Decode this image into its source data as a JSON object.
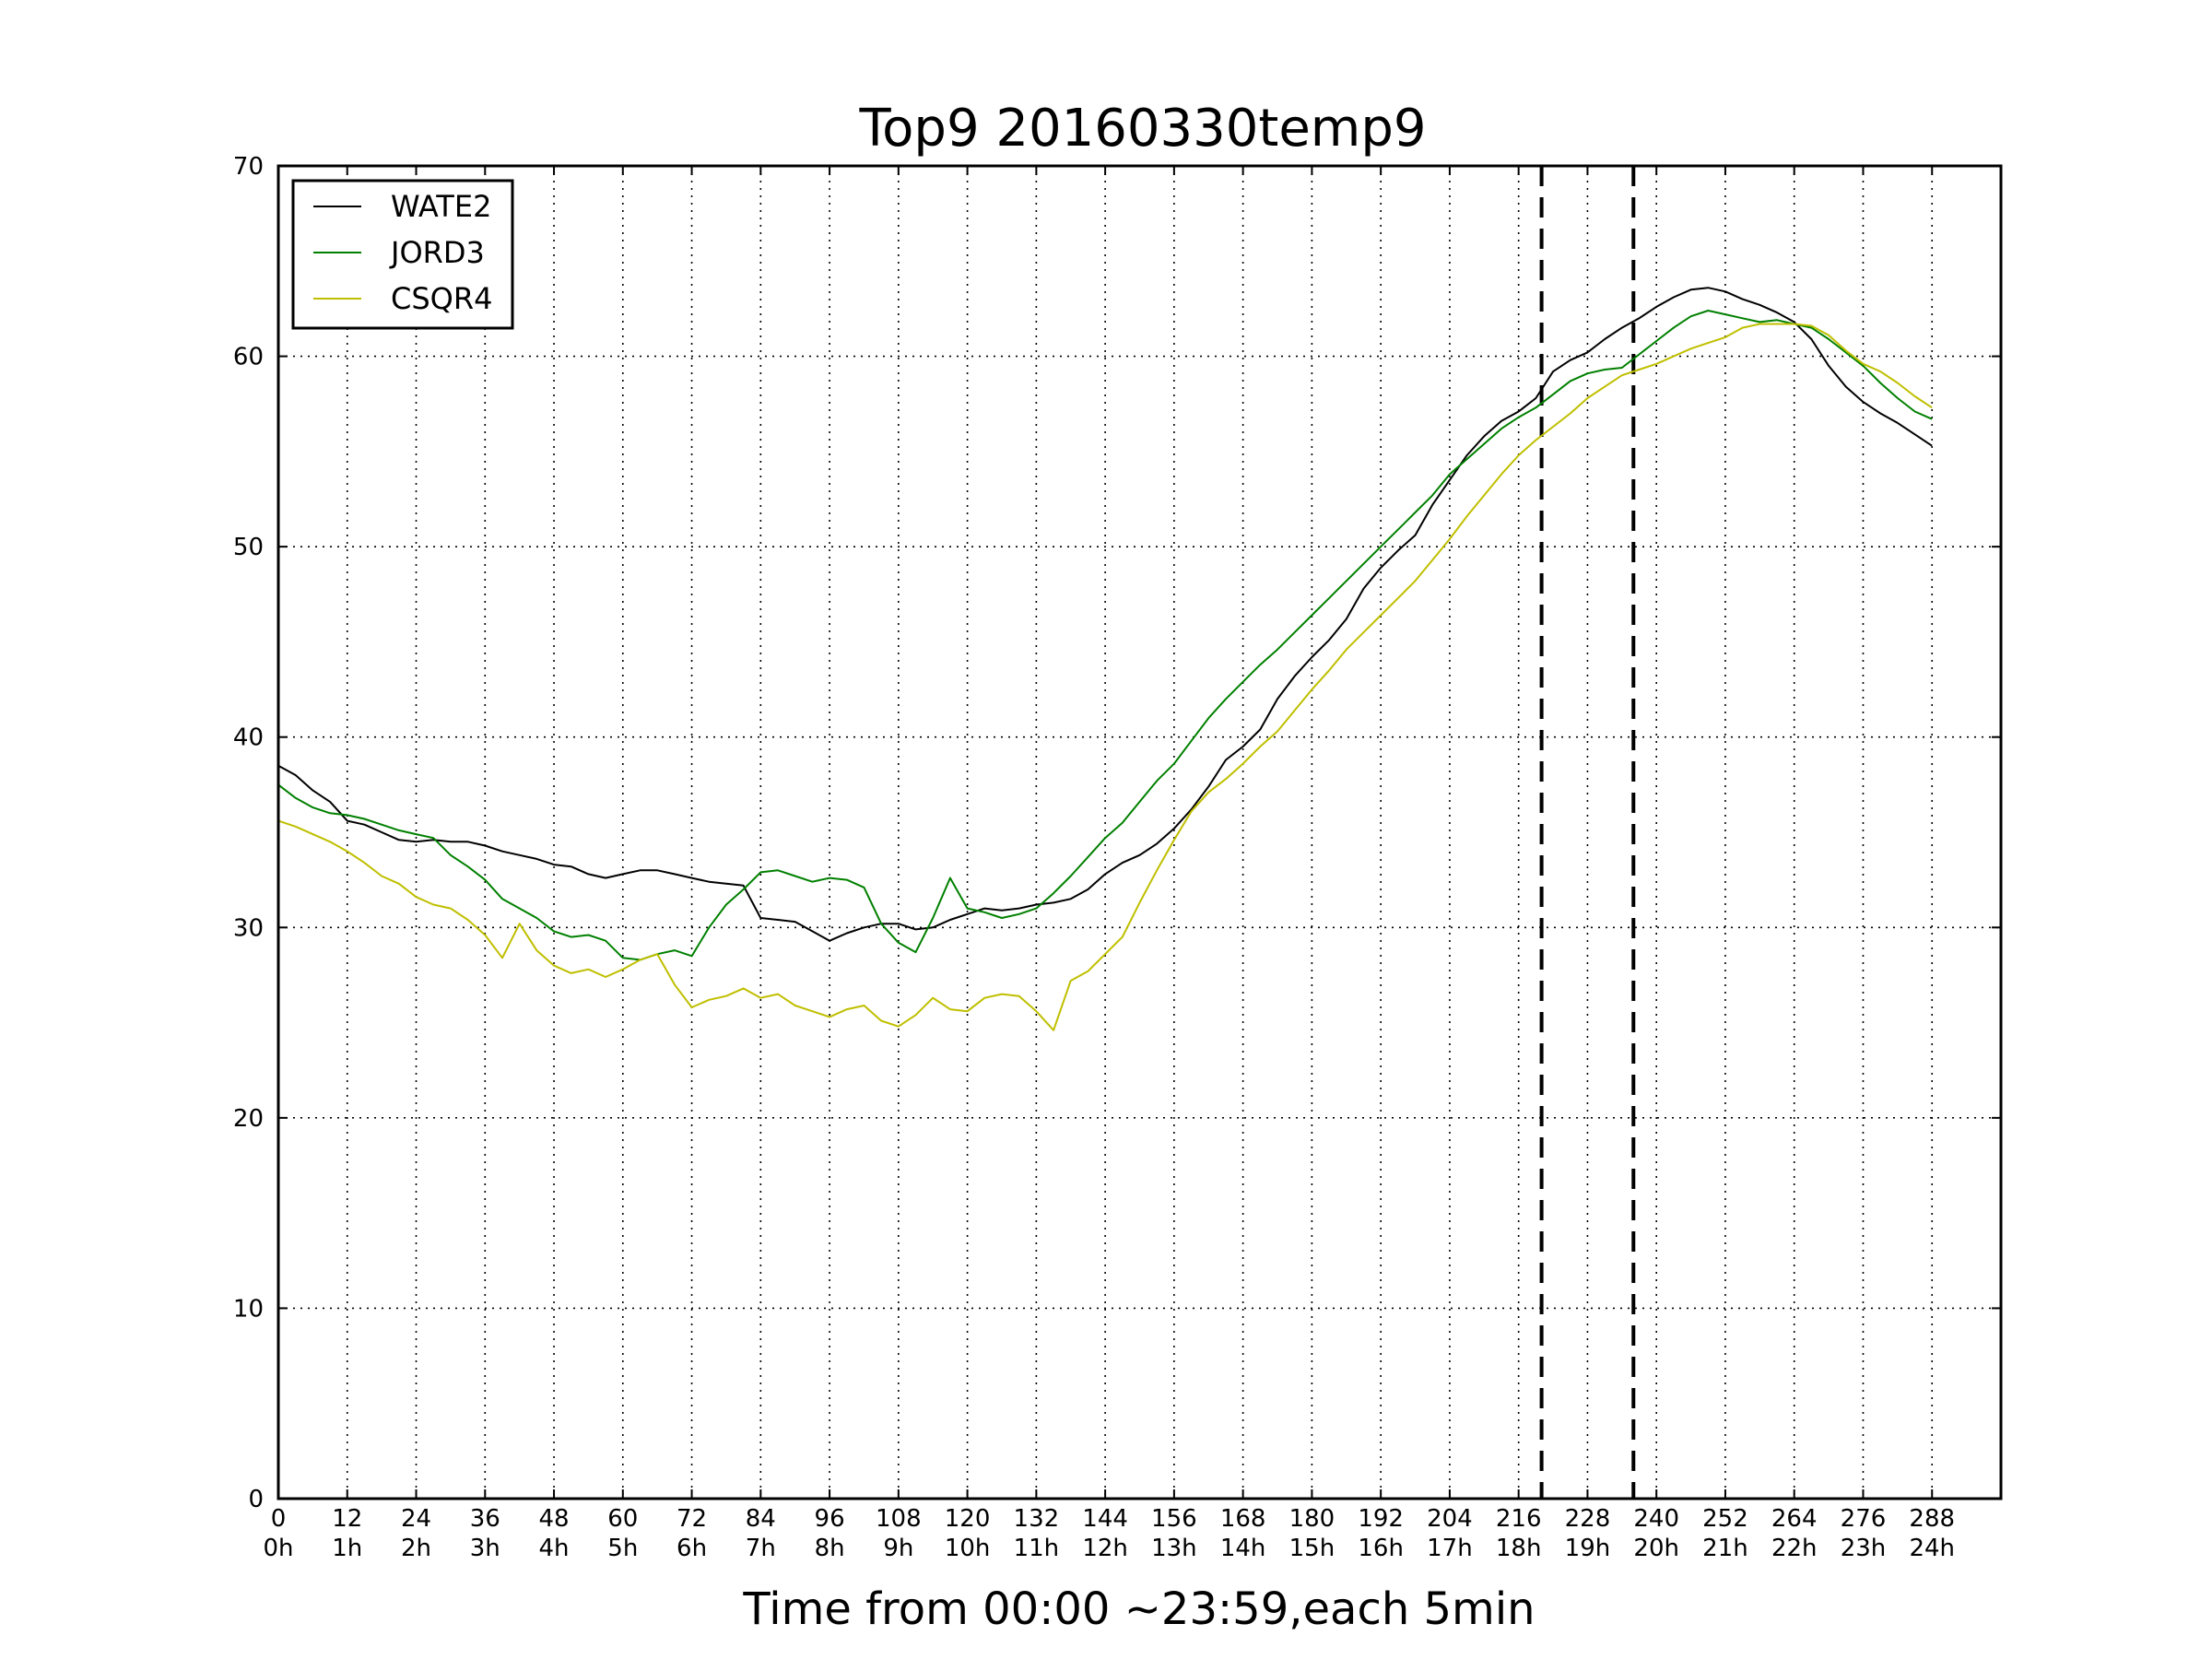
{
  "chart_data": {
    "type": "line",
    "title": "Top9 20160330temp9",
    "xlabel": "Time from 00:00 ~23:59,each 5min",
    "ylabel": "",
    "xlim": [
      0,
      300
    ],
    "ylim": [
      0,
      70
    ],
    "grid": true,
    "legend_position": "top-left",
    "x_ticks": [
      0,
      12,
      24,
      36,
      48,
      60,
      72,
      84,
      96,
      108,
      120,
      132,
      144,
      156,
      168,
      180,
      192,
      204,
      216,
      228,
      240,
      252,
      264,
      276,
      288
    ],
    "x_tick_labels_top": [
      "0",
      "12",
      "24",
      "36",
      "48",
      "60",
      "72",
      "84",
      "96",
      "108",
      "120",
      "132",
      "144",
      "156",
      "168",
      "180",
      "192",
      "204",
      "216",
      "228",
      "240",
      "252",
      "264",
      "276",
      "288"
    ],
    "x_tick_labels_bottom": [
      "0h",
      "1h",
      "2h",
      "3h",
      "4h",
      "5h",
      "6h",
      "7h",
      "8h",
      "9h",
      "10h",
      "11h",
      "12h",
      "13h",
      "14h",
      "15h",
      "16h",
      "17h",
      "18h",
      "19h",
      "20h",
      "21h",
      "22h",
      "23h",
      "24h"
    ],
    "y_ticks": [
      0,
      10,
      20,
      30,
      40,
      50,
      60,
      70
    ],
    "y_tick_labels": [
      "0",
      "10",
      "20",
      "30",
      "40",
      "50",
      "60",
      "70"
    ],
    "vlines": [
      220,
      236
    ],
    "series": [
      {
        "name": "WATE2",
        "color": "#000000",
        "x": [
          0,
          3,
          6,
          9,
          12,
          15,
          18,
          21,
          24,
          27,
          30,
          33,
          36,
          39,
          42,
          45,
          48,
          51,
          54,
          57,
          60,
          63,
          66,
          69,
          72,
          75,
          78,
          81,
          84,
          87,
          90,
          93,
          96,
          99,
          102,
          105,
          108,
          111,
          114,
          117,
          120,
          123,
          126,
          129,
          132,
          135,
          138,
          141,
          144,
          147,
          150,
          153,
          156,
          159,
          162,
          165,
          168,
          171,
          174,
          177,
          180,
          183,
          186,
          189,
          192,
          195,
          198,
          201,
          204,
          207,
          210,
          213,
          216,
          219,
          222,
          225,
          228,
          231,
          234,
          237,
          240,
          243,
          246,
          249,
          252,
          255,
          258,
          261,
          264,
          267,
          270,
          273,
          276,
          279,
          282,
          285,
          288
        ],
        "values": [
          38.5,
          38.0,
          37.2,
          36.6,
          35.6,
          35.4,
          35.0,
          34.6,
          34.5,
          34.6,
          34.5,
          34.5,
          34.3,
          34.0,
          33.8,
          33.6,
          33.3,
          33.2,
          32.8,
          32.6,
          32.8,
          33.0,
          33.0,
          32.8,
          32.6,
          32.4,
          32.3,
          32.2,
          30.5,
          30.4,
          30.3,
          29.8,
          29.3,
          29.7,
          30.0,
          30.2,
          30.2,
          29.9,
          30.0,
          30.4,
          30.7,
          31.0,
          30.9,
          31.0,
          31.2,
          31.3,
          31.5,
          32.0,
          32.8,
          33.4,
          33.8,
          34.4,
          35.2,
          36.2,
          37.4,
          38.8,
          39.5,
          40.4,
          42.0,
          43.2,
          44.2,
          45.1,
          46.2,
          47.8,
          48.9,
          49.8,
          50.6,
          52.2,
          53.5,
          54.8,
          55.8,
          56.6,
          57.1,
          57.8,
          59.2,
          59.8,
          60.2,
          60.9,
          61.5,
          62.0,
          62.6,
          63.1,
          63.5,
          63.6,
          63.4,
          63.0,
          62.7,
          62.3,
          61.8,
          60.9,
          59.5,
          58.4,
          57.6,
          57.0,
          56.5,
          55.9,
          55.3
        ]
      },
      {
        "name": "JORD3",
        "color": "#008000",
        "x": [
          0,
          3,
          6,
          9,
          12,
          15,
          18,
          21,
          24,
          27,
          30,
          33,
          36,
          39,
          42,
          45,
          48,
          51,
          54,
          57,
          60,
          63,
          66,
          69,
          72,
          75,
          78,
          81,
          84,
          87,
          90,
          93,
          96,
          99,
          102,
          105,
          108,
          111,
          114,
          117,
          120,
          123,
          126,
          129,
          132,
          135,
          138,
          141,
          144,
          147,
          150,
          153,
          156,
          159,
          162,
          165,
          168,
          171,
          174,
          177,
          180,
          183,
          186,
          189,
          192,
          195,
          198,
          201,
          204,
          207,
          210,
          213,
          216,
          219,
          222,
          225,
          228,
          231,
          234,
          237,
          240,
          243,
          246,
          249,
          252,
          255,
          258,
          261,
          264,
          267,
          270,
          273,
          276,
          279,
          282,
          285,
          288
        ],
        "values": [
          37.5,
          36.8,
          36.3,
          36.0,
          35.9,
          35.7,
          35.4,
          35.1,
          34.9,
          34.7,
          33.8,
          33.2,
          32.5,
          31.5,
          31.0,
          30.5,
          29.8,
          29.5,
          29.6,
          29.3,
          28.4,
          28.3,
          28.6,
          28.8,
          28.5,
          30.0,
          31.2,
          32.0,
          32.9,
          33.0,
          32.7,
          32.4,
          32.6,
          32.5,
          32.1,
          30.2,
          29.2,
          28.7,
          30.5,
          32.6,
          31.0,
          30.8,
          30.5,
          30.7,
          31.0,
          31.8,
          32.7,
          33.7,
          34.7,
          35.5,
          36.6,
          37.7,
          38.6,
          39.8,
          41.0,
          42.0,
          42.9,
          43.8,
          44.6,
          45.5,
          46.4,
          47.3,
          48.2,
          49.1,
          50.0,
          50.9,
          51.8,
          52.7,
          53.8,
          54.6,
          55.4,
          56.2,
          56.8,
          57.3,
          58.0,
          58.7,
          59.1,
          59.3,
          59.4,
          60.1,
          60.8,
          61.5,
          62.1,
          62.4,
          62.2,
          62.0,
          61.8,
          61.9,
          61.7,
          61.5,
          60.9,
          60.2,
          59.5,
          58.6,
          57.8,
          57.1,
          56.7
        ]
      },
      {
        "name": "CSQR4",
        "color": "#bfbf00",
        "x": [
          0,
          3,
          6,
          9,
          12,
          15,
          18,
          21,
          24,
          27,
          30,
          33,
          36,
          39,
          42,
          45,
          48,
          51,
          54,
          57,
          60,
          63,
          66,
          69,
          72,
          75,
          78,
          81,
          84,
          87,
          90,
          93,
          96,
          99,
          102,
          105,
          108,
          111,
          114,
          117,
          120,
          123,
          126,
          129,
          132,
          135,
          138,
          141,
          144,
          147,
          150,
          153,
          156,
          159,
          162,
          165,
          168,
          171,
          174,
          177,
          180,
          183,
          186,
          189,
          192,
          195,
          198,
          201,
          204,
          207,
          210,
          213,
          216,
          219,
          222,
          225,
          228,
          231,
          234,
          237,
          240,
          243,
          246,
          249,
          252,
          255,
          258,
          261,
          264,
          267,
          270,
          273,
          276,
          279,
          282,
          285,
          288
        ],
        "values": [
          35.6,
          35.3,
          34.9,
          34.5,
          34.0,
          33.4,
          32.7,
          32.3,
          31.6,
          31.2,
          31.0,
          30.4,
          29.6,
          28.4,
          30.2,
          28.8,
          28.0,
          27.6,
          27.8,
          27.4,
          27.8,
          28.3,
          28.6,
          27.0,
          25.8,
          26.2,
          26.4,
          26.8,
          26.3,
          26.5,
          25.9,
          25.6,
          25.3,
          25.7,
          25.9,
          25.1,
          24.8,
          25.4,
          26.3,
          25.7,
          25.6,
          26.3,
          26.5,
          26.4,
          25.6,
          24.6,
          27.2,
          27.7,
          28.6,
          29.5,
          31.3,
          33.0,
          34.6,
          36.1,
          37.1,
          37.8,
          38.6,
          39.5,
          40.3,
          41.4,
          42.5,
          43.5,
          44.6,
          45.5,
          46.4,
          47.3,
          48.2,
          49.3,
          50.4,
          51.6,
          52.7,
          53.8,
          54.8,
          55.6,
          56.3,
          57.0,
          57.8,
          58.4,
          59.0,
          59.3,
          59.6,
          60.0,
          60.4,
          60.7,
          61.0,
          61.5,
          61.7,
          61.7,
          61.7,
          61.6,
          61.1,
          60.3,
          59.6,
          59.2,
          58.6,
          57.9,
          57.3
        ]
      }
    ]
  }
}
